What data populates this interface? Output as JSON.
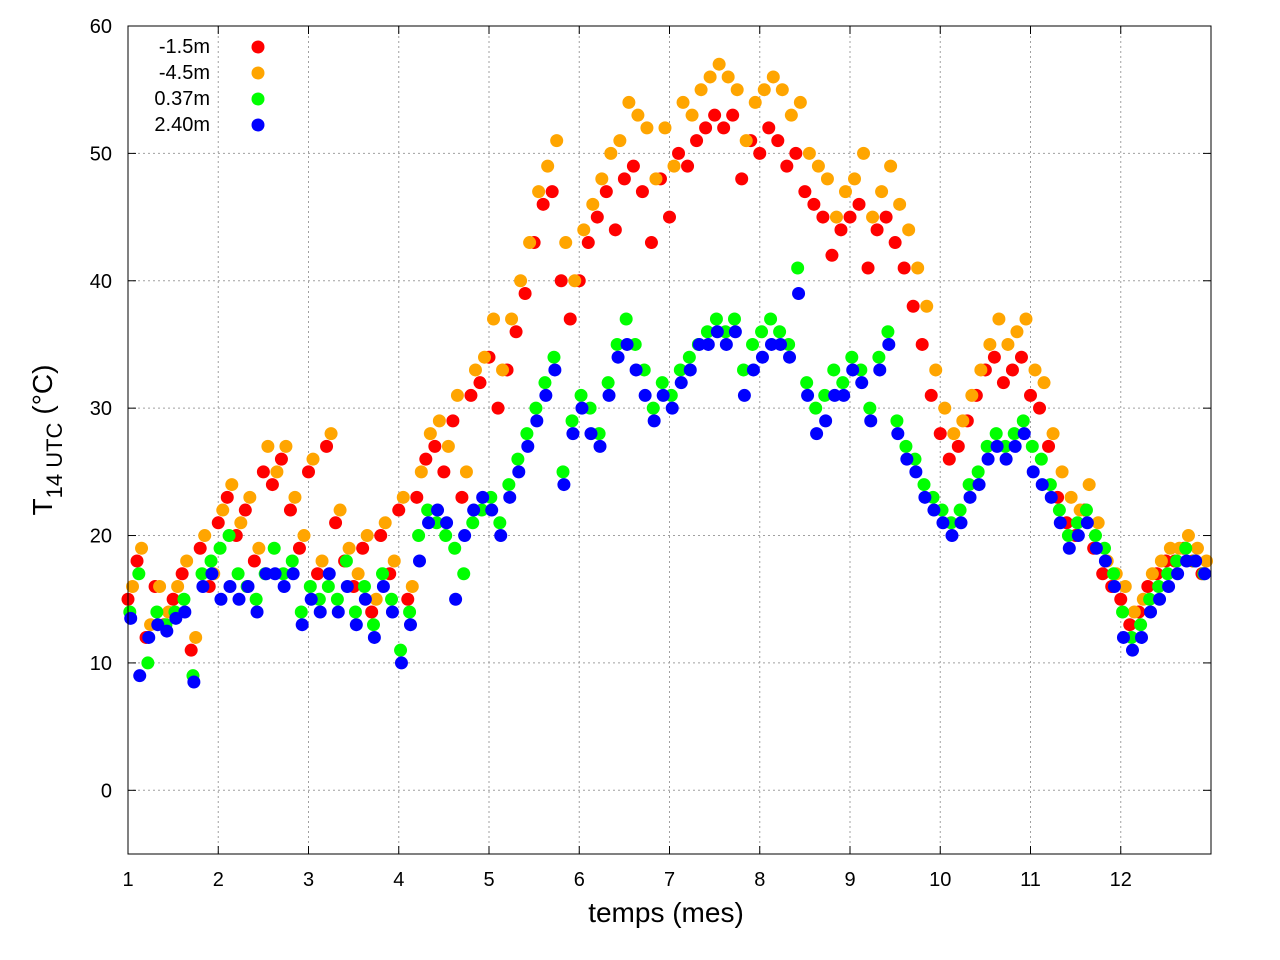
{
  "chart_data": {
    "type": "scatter",
    "xlabel": "temps (mes)",
    "ylabel_main": "T",
    "ylabel_sub": "14 UTC",
    "ylabel_unit": "(°C)",
    "xlim": [
      1,
      13
    ],
    "ylim": [
      -5,
      60
    ],
    "xticks": [
      1,
      2,
      3,
      4,
      5,
      6,
      7,
      8,
      9,
      10,
      11,
      12
    ],
    "yticks": [
      0,
      10,
      20,
      30,
      40,
      50,
      60
    ],
    "grid": true,
    "legend_position": "top-left",
    "series": [
      {
        "name": "-1.5m",
        "color": "#ff0000",
        "x": [
          1.0,
          1.1,
          1.2,
          1.3,
          1.4,
          1.5,
          1.6,
          1.7,
          1.8,
          1.9,
          2.0,
          2.1,
          2.2,
          2.3,
          2.4,
          2.5,
          2.6,
          2.7,
          2.8,
          2.9,
          3.0,
          3.1,
          3.2,
          3.3,
          3.4,
          3.5,
          3.6,
          3.7,
          3.8,
          3.9,
          4.0,
          4.1,
          4.2,
          4.3,
          4.4,
          4.5,
          4.6,
          4.7,
          4.8,
          4.9,
          5.0,
          5.1,
          5.2,
          5.3,
          5.4,
          5.5,
          5.6,
          5.7,
          5.8,
          5.9,
          6.0,
          6.1,
          6.2,
          6.3,
          6.4,
          6.5,
          6.6,
          6.7,
          6.8,
          6.9,
          7.0,
          7.1,
          7.2,
          7.3,
          7.4,
          7.5,
          7.6,
          7.7,
          7.8,
          7.9,
          8.0,
          8.1,
          8.2,
          8.3,
          8.4,
          8.5,
          8.6,
          8.7,
          8.8,
          8.9,
          9.0,
          9.1,
          9.2,
          9.3,
          9.4,
          9.5,
          9.6,
          9.7,
          9.8,
          9.9,
          10.0,
          10.1,
          10.2,
          10.3,
          10.4,
          10.5,
          10.6,
          10.7,
          10.8,
          10.9,
          11.0,
          11.1,
          11.2,
          11.3,
          11.4,
          11.5,
          11.6,
          11.7,
          11.8,
          11.9,
          12.0,
          12.1,
          12.2,
          12.3,
          12.4,
          12.5,
          12.6,
          12.7,
          12.8,
          12.9
        ],
        "y": [
          15,
          18,
          12,
          16,
          13,
          15,
          17,
          11,
          19,
          16,
          21,
          23,
          20,
          22,
          18,
          25,
          24,
          26,
          22,
          19,
          25,
          17,
          27,
          21,
          18,
          16,
          19,
          14,
          20,
          17,
          22,
          15,
          23,
          26,
          27,
          25,
          29,
          23,
          31,
          32,
          34,
          30,
          33,
          36,
          39,
          43,
          46,
          47,
          40,
          37,
          40,
          43,
          45,
          47,
          44,
          48,
          49,
          47,
          43,
          48,
          45,
          50,
          49,
          51,
          52,
          53,
          52,
          53,
          48,
          51,
          50,
          52,
          51,
          49,
          50,
          47,
          46,
          45,
          42,
          44,
          45,
          46,
          41,
          44,
          45,
          43,
          41,
          38,
          35,
          31,
          28,
          26,
          27,
          29,
          31,
          33,
          34,
          32,
          33,
          34,
          31,
          30,
          27,
          23,
          21,
          20,
          22,
          19,
          17,
          16,
          15,
          13,
          14,
          16,
          17,
          18,
          18,
          19,
          18,
          17
        ]
      },
      {
        "name": "-4.5m",
        "color": "#ffa500",
        "x": [
          1.05,
          1.15,
          1.25,
          1.35,
          1.45,
          1.55,
          1.65,
          1.75,
          1.85,
          1.95,
          2.05,
          2.15,
          2.25,
          2.35,
          2.45,
          2.55,
          2.65,
          2.75,
          2.85,
          2.95,
          3.05,
          3.15,
          3.25,
          3.35,
          3.45,
          3.55,
          3.65,
          3.75,
          3.85,
          3.95,
          4.05,
          4.15,
          4.25,
          4.35,
          4.45,
          4.55,
          4.65,
          4.75,
          4.85,
          4.95,
          5.05,
          5.15,
          5.25,
          5.35,
          5.45,
          5.55,
          5.65,
          5.75,
          5.85,
          5.95,
          6.05,
          6.15,
          6.25,
          6.35,
          6.45,
          6.55,
          6.65,
          6.75,
          6.85,
          6.95,
          7.05,
          7.15,
          7.25,
          7.35,
          7.45,
          7.55,
          7.65,
          7.75,
          7.85,
          7.95,
          8.05,
          8.15,
          8.25,
          8.35,
          8.45,
          8.55,
          8.65,
          8.75,
          8.85,
          8.95,
          9.05,
          9.15,
          9.25,
          9.35,
          9.45,
          9.55,
          9.65,
          9.75,
          9.85,
          9.95,
          10.05,
          10.15,
          10.25,
          10.35,
          10.45,
          10.55,
          10.65,
          10.75,
          10.85,
          10.95,
          11.05,
          11.15,
          11.25,
          11.35,
          11.45,
          11.55,
          11.65,
          11.75,
          11.85,
          11.95,
          12.05,
          12.15,
          12.25,
          12.35,
          12.45,
          12.55,
          12.65,
          12.75,
          12.85,
          12.95
        ],
        "y": [
          16,
          19,
          13,
          16,
          14,
          16,
          18,
          12,
          20,
          17,
          22,
          24,
          21,
          23,
          19,
          27,
          25,
          27,
          23,
          20,
          26,
          18,
          28,
          22,
          19,
          17,
          20,
          15,
          21,
          18,
          23,
          16,
          25,
          28,
          29,
          27,
          31,
          25,
          33,
          34,
          37,
          33,
          37,
          40,
          43,
          47,
          49,
          51,
          43,
          40,
          44,
          46,
          48,
          50,
          51,
          54,
          53,
          52,
          48,
          52,
          49,
          54,
          53,
          55,
          56,
          57,
          56,
          55,
          51,
          54,
          55,
          56,
          55,
          53,
          54,
          50,
          49,
          48,
          45,
          47,
          48,
          50,
          45,
          47,
          49,
          46,
          44,
          41,
          38,
          33,
          30,
          28,
          29,
          31,
          33,
          35,
          37,
          35,
          36,
          37,
          33,
          32,
          28,
          25,
          23,
          22,
          24,
          21,
          18,
          17,
          16,
          14,
          15,
          17,
          18,
          19,
          19,
          20,
          19,
          18
        ]
      },
      {
        "name": "0.37m",
        "color": "#00ff00",
        "x": [
          1.02,
          1.12,
          1.22,
          1.32,
          1.42,
          1.52,
          1.62,
          1.72,
          1.82,
          1.92,
          2.02,
          2.12,
          2.22,
          2.32,
          2.42,
          2.52,
          2.62,
          2.72,
          2.82,
          2.92,
          3.02,
          3.12,
          3.22,
          3.32,
          3.42,
          3.52,
          3.62,
          3.72,
          3.82,
          3.92,
          4.02,
          4.12,
          4.22,
          4.32,
          4.42,
          4.52,
          4.62,
          4.72,
          4.82,
          4.92,
          5.02,
          5.12,
          5.22,
          5.32,
          5.42,
          5.52,
          5.62,
          5.72,
          5.82,
          5.92,
          6.02,
          6.12,
          6.22,
          6.32,
          6.42,
          6.52,
          6.62,
          6.72,
          6.82,
          6.92,
          7.02,
          7.12,
          7.22,
          7.32,
          7.42,
          7.52,
          7.62,
          7.72,
          7.82,
          7.92,
          8.02,
          8.12,
          8.22,
          8.32,
          8.42,
          8.52,
          8.62,
          8.72,
          8.82,
          8.92,
          9.02,
          9.12,
          9.22,
          9.32,
          9.42,
          9.52,
          9.62,
          9.72,
          9.82,
          9.92,
          10.02,
          10.12,
          10.22,
          10.32,
          10.42,
          10.52,
          10.62,
          10.72,
          10.82,
          10.92,
          11.02,
          11.12,
          11.22,
          11.32,
          11.42,
          11.52,
          11.62,
          11.72,
          11.82,
          11.92,
          12.02,
          12.12,
          12.22,
          12.32,
          12.42,
          12.52,
          12.62,
          12.72,
          12.82,
          12.92
        ],
        "y": [
          14,
          17,
          10,
          14,
          13,
          14,
          15,
          9,
          17,
          18,
          19,
          20,
          17,
          16,
          15,
          17,
          19,
          17,
          18,
          14,
          16,
          15,
          16,
          15,
          18,
          14,
          16,
          13,
          17,
          15,
          11,
          14,
          20,
          22,
          21,
          20,
          19,
          17,
          21,
          22,
          23,
          21,
          24,
          26,
          28,
          30,
          32,
          34,
          25,
          29,
          31,
          30,
          28,
          32,
          35,
          37,
          35,
          33,
          30,
          32,
          31,
          33,
          34,
          35,
          36,
          37,
          36,
          37,
          33,
          35,
          36,
          37,
          36,
          35,
          41,
          32,
          30,
          31,
          33,
          32,
          34,
          33,
          30,
          34,
          36,
          29,
          27,
          26,
          24,
          23,
          22,
          21,
          22,
          24,
          25,
          27,
          28,
          27,
          28,
          29,
          27,
          26,
          24,
          22,
          20,
          21,
          22,
          20,
          19,
          17,
          14,
          12,
          13,
          15,
          16,
          17,
          18,
          19,
          18,
          17
        ]
      },
      {
        "name": "2.40m",
        "color": "#0000ff",
        "x": [
          1.03,
          1.13,
          1.23,
          1.33,
          1.43,
          1.53,
          1.63,
          1.73,
          1.83,
          1.93,
          2.03,
          2.13,
          2.23,
          2.33,
          2.43,
          2.53,
          2.63,
          2.73,
          2.83,
          2.93,
          3.03,
          3.13,
          3.23,
          3.33,
          3.43,
          3.53,
          3.63,
          3.73,
          3.83,
          3.93,
          4.03,
          4.13,
          4.23,
          4.33,
          4.43,
          4.53,
          4.63,
          4.73,
          4.83,
          4.93,
          5.03,
          5.13,
          5.23,
          5.33,
          5.43,
          5.53,
          5.63,
          5.73,
          5.83,
          5.93,
          6.03,
          6.13,
          6.23,
          6.33,
          6.43,
          6.53,
          6.63,
          6.73,
          6.83,
          6.93,
          7.03,
          7.13,
          7.23,
          7.33,
          7.43,
          7.53,
          7.63,
          7.73,
          7.83,
          7.93,
          8.03,
          8.13,
          8.23,
          8.33,
          8.43,
          8.53,
          8.63,
          8.73,
          8.83,
          8.93,
          9.03,
          9.13,
          9.23,
          9.33,
          9.43,
          9.53,
          9.63,
          9.73,
          9.83,
          9.93,
          10.03,
          10.13,
          10.23,
          10.33,
          10.43,
          10.53,
          10.63,
          10.73,
          10.83,
          10.93,
          11.03,
          11.13,
          11.23,
          11.33,
          11.43,
          11.53,
          11.63,
          11.73,
          11.83,
          11.93,
          12.03,
          12.13,
          12.23,
          12.33,
          12.43,
          12.53,
          12.63,
          12.73,
          12.83,
          12.93
        ],
        "y": [
          13.5,
          9,
          12,
          13,
          12.5,
          13.5,
          14,
          8.5,
          16,
          17,
          15,
          16,
          15,
          16,
          14,
          17,
          17,
          16,
          17,
          13,
          15,
          14,
          17,
          14,
          16,
          13,
          15,
          12,
          16,
          14,
          10,
          13,
          18,
          21,
          22,
          21,
          15,
          20,
          22,
          23,
          22,
          20,
          23,
          25,
          27,
          29,
          31,
          33,
          24,
          28,
          30,
          28,
          27,
          31,
          34,
          35,
          33,
          31,
          29,
          31,
          30,
          32,
          33,
          35,
          35,
          36,
          35,
          36,
          31,
          33,
          34,
          35,
          35,
          34,
          39,
          31,
          28,
          29,
          31,
          31,
          33,
          32,
          29,
          33,
          35,
          28,
          26,
          25,
          23,
          22,
          21,
          20,
          21,
          23,
          24,
          26,
          27,
          26,
          27,
          28,
          25,
          24,
          23,
          21,
          19,
          20,
          21,
          19,
          18,
          16,
          12,
          11,
          12,
          14,
          15,
          16,
          17,
          18,
          18,
          17
        ]
      }
    ]
  }
}
